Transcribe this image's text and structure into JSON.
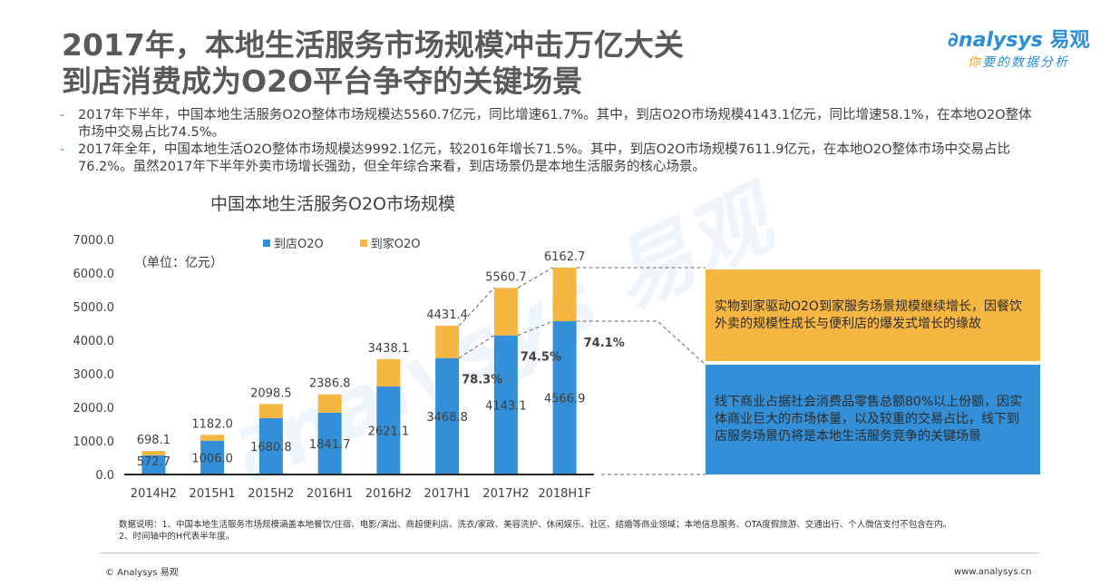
{
  "header": {
    "title_line1": "2017年，本地生活服务市场规模冲击万亿大关",
    "title_line2": "到店消费成为O2O平台争夺的关键场景"
  },
  "logo": {
    "brand_en": "nalysys",
    "brand_mark": "∂",
    "brand_cn": "易观",
    "slogan_first": "你",
    "slogan_rest": "要的数据分析"
  },
  "bullets": [
    {
      "dash": "-",
      "text": "2017年下半年，中国本地生活服务O2O整体市场规模达5560.7亿元，同比增速61.7%。其中，到店O2O市场规模4143.1亿元，同比增速58.1%，在本地O2O整体市场中交易占比74.5%。"
    },
    {
      "dash": "-",
      "text": "2017年全年，中国本地生活O2O整体市场规模达9992.1亿元，较2016年增长71.5%。其中，到店O2O市场规模7611.9亿元，在本地O2O整体市场中交易占比76.2%。虽然2017年下半年外卖市场增长强劲，但全年综合来看，到店场景仍是本地生活服务的核心场景。"
    }
  ],
  "chart_data": {
    "type": "bar",
    "stacked": true,
    "title": "中国本地生活服务O2O市场规模",
    "unit_label": "（单位：亿元）",
    "xlabel": "",
    "ylabel": "",
    "ylim": [
      0,
      7000
    ],
    "yticks": [
      0,
      1000,
      2000,
      3000,
      4000,
      5000,
      6000,
      7000
    ],
    "ytick_labels": [
      "0.0",
      "1000.0",
      "2000.0",
      "3000.0",
      "4000.0",
      "5000.0",
      "6000.0",
      "7000.0"
    ],
    "grid": false,
    "legend_position": "top-center",
    "categories": [
      "2014H2",
      "2015H1",
      "2015H2",
      "2016H1",
      "2016H2",
      "2017H1",
      "2017H2",
      "2018H1F"
    ],
    "series": [
      {
        "name": "到店O2O",
        "color": "#3390d8",
        "values": [
          572.7,
          1006.0,
          1680.8,
          1841.7,
          2621.1,
          3468.8,
          4143.1,
          4566.9
        ]
      },
      {
        "name": "到家O2O",
        "color": "#f6b642",
        "values": [
          125.4,
          176.0,
          417.7,
          545.1,
          817.0,
          962.6,
          1417.6,
          1595.8
        ]
      }
    ],
    "total_labels": [
      "698.1",
      "1182.0",
      "2098.5",
      "2386.8",
      "3438.1",
      "4431.4",
      "5560.7",
      "6162.7"
    ],
    "segment_labels": [
      "572.7",
      "1006.0",
      "1680.8",
      "1841.7",
      "2621.1",
      "3468.8",
      "4143.1",
      "4566.9"
    ],
    "share_annotations": [
      {
        "category": "2017H1",
        "text": "78.3%"
      },
      {
        "category": "2017H2",
        "text": "74.5%"
      },
      {
        "category": "2018H1F",
        "text": "74.1%"
      }
    ]
  },
  "callouts": {
    "orange": "实物到家驱动O2O到家服务场景规模继续增长，因餐饮外卖的规模性成长与便利店的爆发式增长的缘故",
    "blue": "线下商业占据社会消费品零售总额80%以上份额，因实体商业巨大的市场体量，以及较重的交易占比，线下到店服务场景仍将是本地生活服务竞争的关键场景"
  },
  "notes": {
    "line1": "数据说明：1、中国本地生活服务市场规模涵盖本地餐饮/住宿、电影/演出、商超便利店、洗衣/家政、美容洗护、休闲娱乐、社区、结婚等商业领域；本地信息服务、OTA度假旅游、交通出行、个人微信支付不包含在内。",
    "line2": "2、时间轴中的H代表半年度。"
  },
  "footer": {
    "copyright": "© Analysys 易观",
    "website": "www.analysys.cn"
  }
}
